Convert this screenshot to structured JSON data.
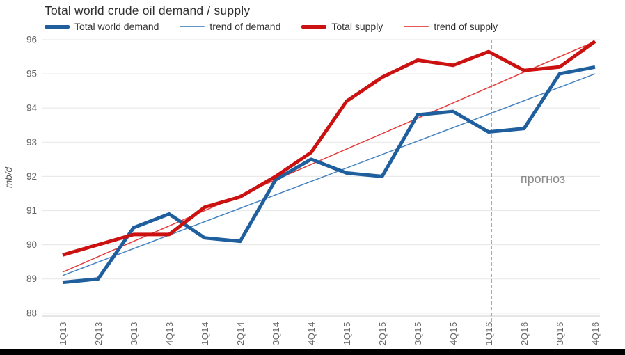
{
  "page": {
    "background": "#ffffff",
    "bottom_bar_color": "#000000"
  },
  "chart_data": {
    "type": "line",
    "title": "Total world crude oil demand / supply",
    "xlabel": "",
    "ylabel": "mb/d",
    "ylim": [
      88,
      96
    ],
    "ytick_step": 1,
    "grid": true,
    "legend_position": "top",
    "categories": [
      "1Q13",
      "2Q13",
      "3Q13",
      "4Q13",
      "1Q14",
      "2Q14",
      "3Q14",
      "4Q14",
      "1Q15",
      "2Q15",
      "3Q15",
      "4Q15",
      "1Q16",
      "2Q16",
      "3Q16",
      "4Q16"
    ],
    "series": [
      {
        "name": "Total world demand",
        "color": "#205f9e",
        "width": 5,
        "trend": false,
        "values": [
          88.9,
          89.0,
          90.5,
          90.9,
          90.2,
          90.1,
          91.9,
          92.5,
          92.1,
          92.0,
          93.8,
          93.9,
          93.3,
          93.4,
          95.0,
          95.2
        ]
      },
      {
        "name": "trend of demand",
        "color": "#4583c1",
        "width": 1.5,
        "trend": true,
        "values": [
          89.1,
          95.0
        ]
      },
      {
        "name": "Total supply",
        "color": "#cc1111",
        "width": 5,
        "trend": false,
        "values": [
          89.7,
          90.0,
          90.3,
          90.3,
          91.1,
          91.4,
          92.0,
          92.7,
          94.2,
          94.9,
          95.4,
          95.25,
          95.65,
          95.1,
          95.2,
          95.95
        ]
      },
      {
        "name": "trend of supply",
        "color": "#e43b3b",
        "width": 1.5,
        "trend": true,
        "values": [
          89.2,
          95.95
        ]
      }
    ],
    "forecast": {
      "label": "прогноз",
      "at_category": "1Q16",
      "line_style": "dashed",
      "line_color": "#555555",
      "label_color": "#8a8a8a"
    },
    "axis": {
      "tick_color": "#666666",
      "grid_color": "#e9e9e9",
      "axis_line_color": "#cdcdcd",
      "ylabel_color": "#555555"
    }
  }
}
